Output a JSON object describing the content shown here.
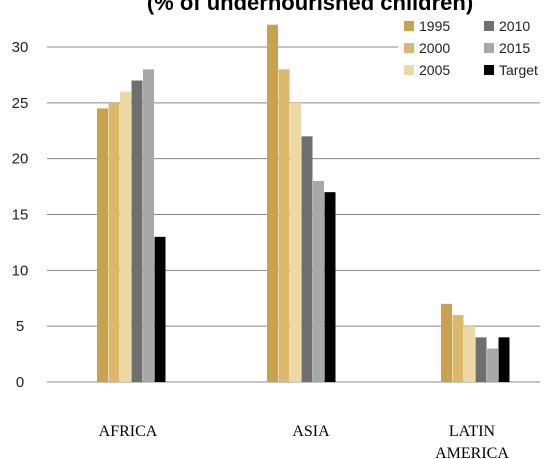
{
  "chart_data": {
    "type": "bar",
    "title": "(% of undernourished children)",
    "categories": [
      "AFRICA",
      "ASIA",
      "LATIN AMERICA"
    ],
    "category_lines": [
      [
        "AFRICA"
      ],
      [
        "ASIA"
      ],
      [
        "LATIN",
        "AMERICA"
      ]
    ],
    "series": [
      {
        "name": "1995",
        "values": [
          24.5,
          32,
          7
        ],
        "color": "#c9a24e"
      },
      {
        "name": "2000",
        "values": [
          25,
          28,
          6
        ],
        "color": "#dcb96a"
      },
      {
        "name": "2005",
        "values": [
          26,
          25,
          5
        ],
        "color": "#ecd9a4"
      },
      {
        "name": "2010",
        "values": [
          27,
          22,
          4
        ],
        "color": "#6f6f6f"
      },
      {
        "name": "2015",
        "values": [
          28,
          18,
          3
        ],
        "color": "#a8a8a8"
      },
      {
        "name": "Target",
        "values": [
          13,
          17,
          4
        ],
        "color": "#000000"
      }
    ],
    "yticks": [
      0,
      5,
      10,
      15,
      20,
      25,
      30
    ],
    "ylim": [
      0,
      30
    ],
    "xlabel": "",
    "ylabel": "",
    "grid": true,
    "legend_position": "top-right"
  }
}
